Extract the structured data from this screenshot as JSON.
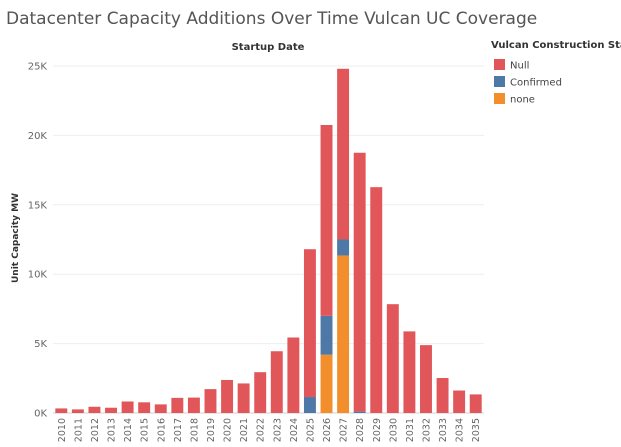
{
  "chart_data": {
    "type": "bar",
    "stacked": true,
    "title": "Datacenter Capacity Additions Over Time Vulcan UC Coverage",
    "xlabel": "Startup Date",
    "ylabel": "Unit Capacity MW",
    "ylim": [
      0,
      25000
    ],
    "yticks": [
      0,
      5000,
      10000,
      15000,
      20000,
      25000
    ],
    "ytick_labels": [
      "0K",
      "5K",
      "10K",
      "15K",
      "20K",
      "25K"
    ],
    "grid": true,
    "legend_position": "right",
    "legend_title": "Vulcan Construction Status",
    "categories": [
      "2010",
      "2011",
      "2012",
      "2013",
      "2014",
      "2015",
      "2016",
      "2017",
      "2018",
      "2019",
      "2020",
      "2021",
      "2022",
      "2023",
      "2024",
      "2025",
      "2026",
      "2027",
      "2028",
      "2029",
      "2030",
      "2031",
      "2032",
      "2033",
      "2034",
      "2035"
    ],
    "series": [
      {
        "name": "none",
        "color": "#f28e2b",
        "values": [
          0,
          0,
          0,
          0,
          0,
          0,
          0,
          0,
          0,
          0,
          0,
          0,
          0,
          0,
          0,
          0,
          4200,
          11350,
          0,
          0,
          0,
          0,
          0,
          0,
          0,
          0
        ]
      },
      {
        "name": "Confirmed",
        "color": "#4e79a7",
        "values": [
          0,
          0,
          0,
          0,
          0,
          0,
          0,
          0,
          0,
          0,
          0,
          0,
          0,
          0,
          0,
          1150,
          2800,
          1150,
          100,
          0,
          0,
          0,
          0,
          0,
          0,
          0
        ]
      },
      {
        "name": "Null",
        "color": "#e15759",
        "values": [
          330,
          260,
          450,
          380,
          830,
          770,
          620,
          1090,
          1110,
          1720,
          2380,
          2130,
          2940,
          4450,
          5440,
          10650,
          13750,
          12300,
          18650,
          16270,
          7840,
          5880,
          4890,
          2520,
          1620,
          1340
        ]
      }
    ],
    "legend_order": [
      "Null",
      "Confirmed",
      "none"
    ]
  }
}
